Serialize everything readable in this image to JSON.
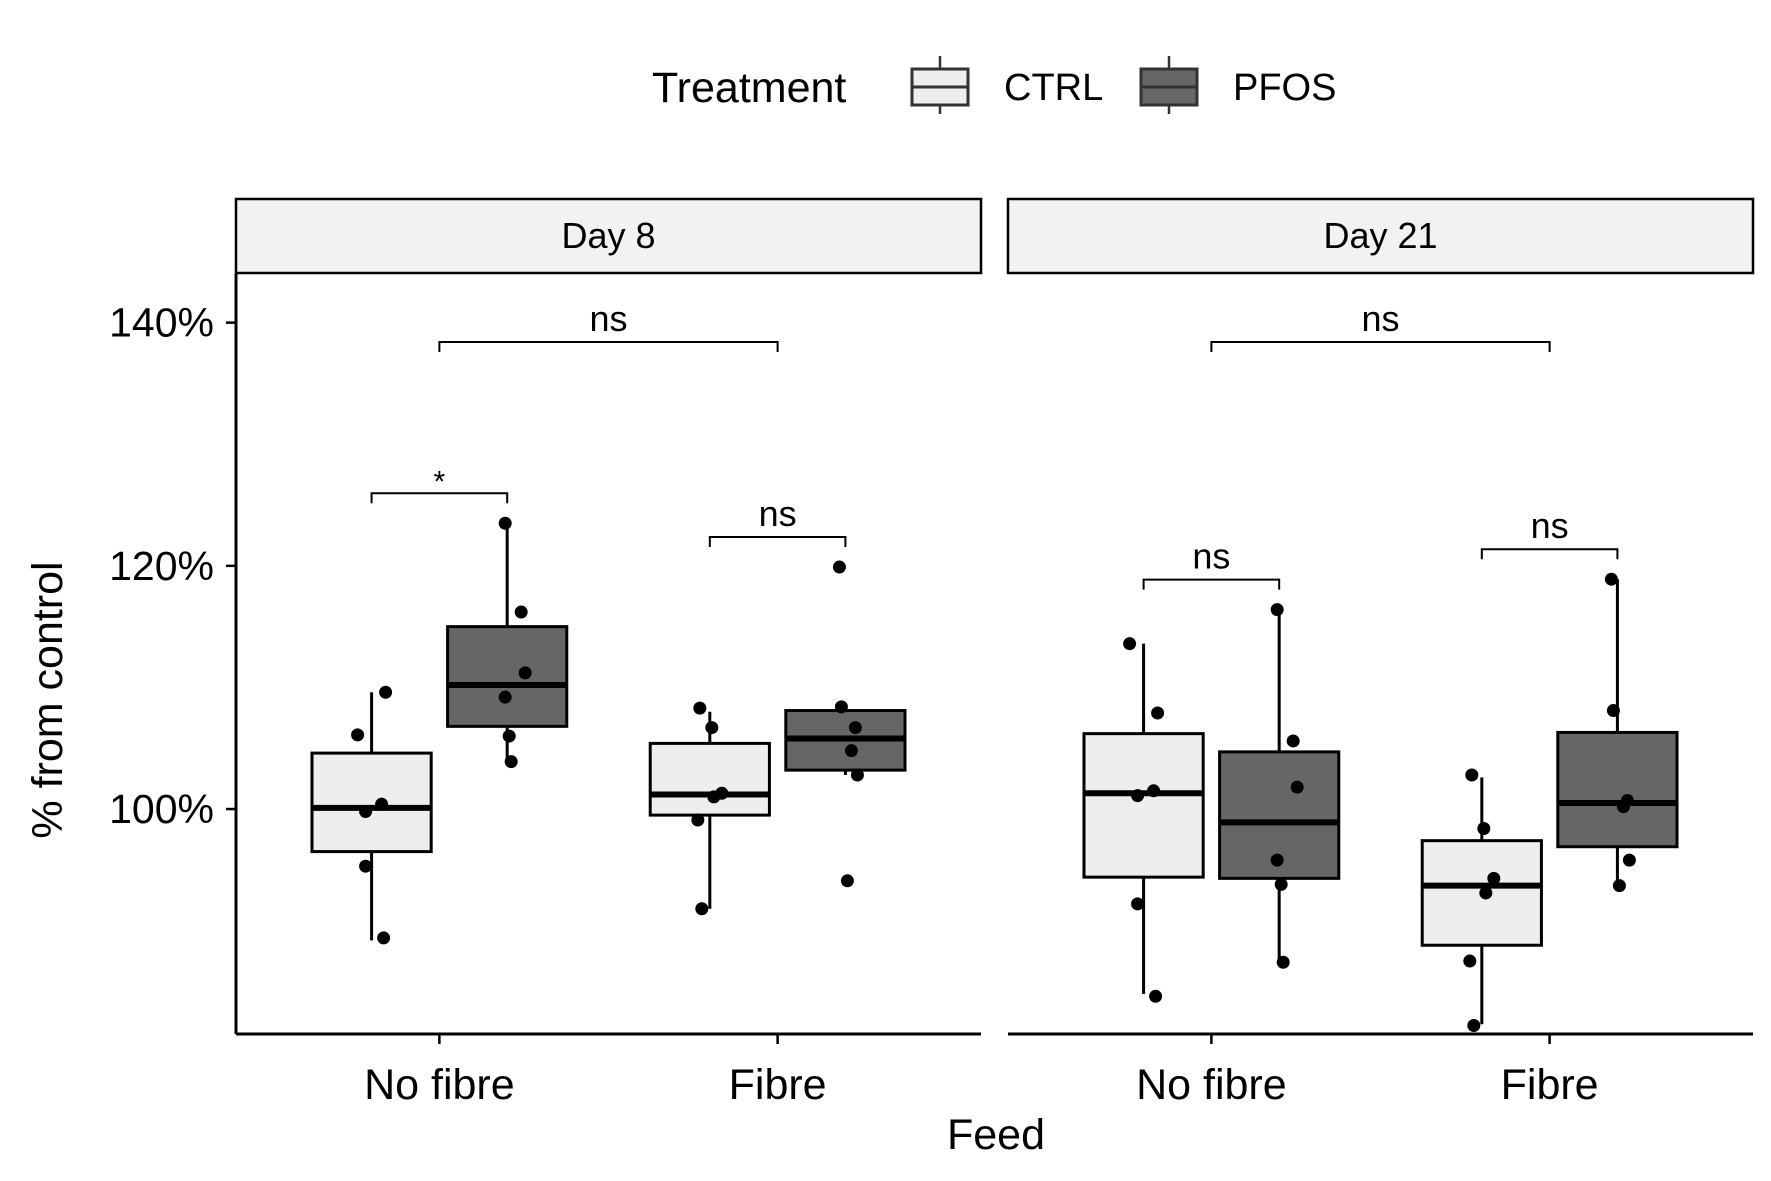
{
  "chart_data": {
    "type": "boxplot",
    "legend": {
      "title": "Treatment",
      "position": "top",
      "entries": [
        {
          "label": "CTRL",
          "color": "#eeeeee"
        },
        {
          "label": "PFOS",
          "color": "#666666"
        }
      ]
    },
    "xlabel": "Feed",
    "ylabel": "% from control",
    "yticks": [
      "100%",
      "120%",
      "140%"
    ],
    "ytick_values": [
      100,
      120,
      140
    ],
    "ylim": [
      81.5,
      144
    ],
    "categories": [
      "No fibre",
      "Fibre"
    ],
    "panels": [
      {
        "title": "Day 8",
        "groups": [
          {
            "feed": "No fibre",
            "treatment": "CTRL",
            "box": {
              "whisker_low": 89.2,
              "q1": 96.5,
              "median": 100.1,
              "q3": 104.6,
              "whisker_high": 109.6
            },
            "points": [
              106.1,
              109.6,
              100.4,
              99.8,
              95.3,
              89.4
            ]
          },
          {
            "feed": "No fibre",
            "treatment": "PFOS",
            "box": {
              "whisker_low": 103.9,
              "q1": 106.8,
              "median": 110.2,
              "q3": 115.0,
              "whisker_high": 123.5
            },
            "points": [
              123.5,
              116.2,
              111.2,
              109.2,
              106.0,
              103.9
            ]
          },
          {
            "feed": "Fibre",
            "treatment": "CTRL",
            "box": {
              "whisker_low": 91.8,
              "q1": 99.5,
              "median": 101.2,
              "q3": 105.4,
              "whisker_high": 108.0
            },
            "points": [
              108.3,
              106.7,
              101.3,
              101.0,
              99.1,
              91.8
            ]
          },
          {
            "feed": "Fibre",
            "treatment": "PFOS",
            "box": {
              "whisker_low": 102.8,
              "q1": 103.2,
              "median": 105.8,
              "q3": 108.1,
              "whisker_high": 108.3
            },
            "points": [
              119.9,
              108.4,
              106.7,
              104.8,
              102.8,
              94.1
            ]
          }
        ],
        "comparisons": [
          {
            "label": "*",
            "between": [
              "No fibre CTRL",
              "No fibre PFOS"
            ]
          },
          {
            "label": "ns",
            "between": [
              "Fibre CTRL",
              "Fibre PFOS"
            ]
          },
          {
            "label": "ns",
            "between": [
              "No fibre",
              "Fibre"
            ]
          }
        ]
      },
      {
        "title": "Day 21",
        "groups": [
          {
            "feed": "No fibre",
            "treatment": "CTRL",
            "box": {
              "whisker_low": 84.8,
              "q1": 94.4,
              "median": 101.3,
              "q3": 106.2,
              "whisker_high": 113.6
            },
            "points": [
              113.6,
              107.9,
              101.5,
              101.1,
              92.2,
              84.6
            ]
          },
          {
            "feed": "No fibre",
            "treatment": "PFOS",
            "box": {
              "whisker_low": 87.6,
              "q1": 94.3,
              "median": 98.9,
              "q3": 104.7,
              "whisker_high": 116.4
            },
            "points": [
              116.4,
              105.6,
              101.8,
              95.8,
              93.8,
              87.4
            ]
          },
          {
            "feed": "Fibre",
            "treatment": "CTRL",
            "box": {
              "whisker_low": 82.3,
              "q1": 88.8,
              "median": 93.7,
              "q3": 97.4,
              "whisker_high": 102.6
            },
            "points": [
              102.8,
              98.4,
              94.3,
              93.1,
              87.5,
              82.2
            ]
          },
          {
            "feed": "Fibre",
            "treatment": "PFOS",
            "box": {
              "whisker_low": 93.8,
              "q1": 96.9,
              "median": 100.5,
              "q3": 106.3,
              "whisker_high": 118.9
            },
            "points": [
              118.9,
              108.1,
              100.7,
              100.2,
              95.8,
              93.7
            ]
          }
        ],
        "comparisons": [
          {
            "label": "ns",
            "between": [
              "No fibre CTRL",
              "No fibre PFOS"
            ]
          },
          {
            "label": "ns",
            "between": [
              "Fibre CTRL",
              "Fibre PFOS"
            ]
          },
          {
            "label": "ns",
            "between": [
              "No fibre",
              "Fibre"
            ]
          }
        ]
      }
    ]
  }
}
